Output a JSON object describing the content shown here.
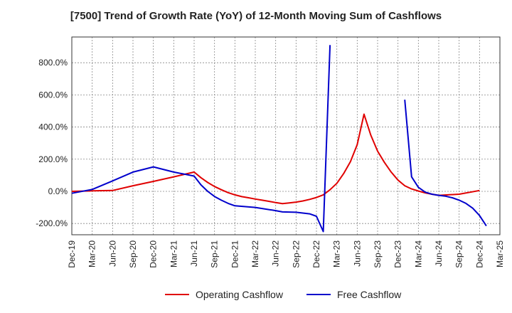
{
  "chart_data": {
    "type": "line",
    "title": "[7500]  Trend of Growth Rate (YoY) of 12-Month Moving Sum of Cashflows",
    "xlabel": "",
    "ylabel": "",
    "ylim": [
      -270,
      960
    ],
    "y_ticks": [
      -200,
      0,
      200,
      400,
      600,
      800
    ],
    "y_tick_labels": [
      "-200.0%",
      "0.0%",
      "200.0%",
      "400.0%",
      "600.0%",
      "800.0%"
    ],
    "x_tick_labels": [
      "Dec-19",
      "Mar-20",
      "Jun-20",
      "Sep-20",
      "Dec-20",
      "Mar-21",
      "Jun-21",
      "Sep-21",
      "Dec-21",
      "Mar-22",
      "Jun-22",
      "Sep-22",
      "Dec-22",
      "Mar-23",
      "Jun-23",
      "Sep-23",
      "Dec-23",
      "Mar-24",
      "Jun-24",
      "Sep-24",
      "Dec-24",
      "Mar-25"
    ],
    "grid": true,
    "legend_position": "bottom",
    "series": [
      {
        "name": "Operating Cashflow",
        "color": "#e00000",
        "points": [
          [
            "Dec-19",
            0
          ],
          [
            "Mar-20",
            3
          ],
          [
            "Jun-20",
            5
          ],
          [
            "Sep-20",
            35
          ],
          [
            "Dec-20",
            62
          ],
          [
            "Mar-21",
            90
          ],
          [
            "Jun-21",
            120
          ],
          [
            "Jul-21",
            85
          ],
          [
            "Aug-21",
            55
          ],
          [
            "Sep-21",
            30
          ],
          [
            "Oct-21",
            10
          ],
          [
            "Nov-21",
            -8
          ],
          [
            "Dec-21",
            -22
          ],
          [
            "Jan-22",
            -33
          ],
          [
            "Feb-22",
            -40
          ],
          [
            "Mar-22",
            -48
          ],
          [
            "Apr-22",
            -55
          ],
          [
            "May-22",
            -62
          ],
          [
            "Jun-22",
            -70
          ],
          [
            "Jul-22",
            -76
          ],
          [
            "Aug-22",
            -72
          ],
          [
            "Sep-22",
            -67
          ],
          [
            "Oct-22",
            -60
          ],
          [
            "Nov-22",
            -50
          ],
          [
            "Dec-22",
            -38
          ],
          [
            "Jan-23",
            -22
          ],
          [
            "Feb-23",
            10
          ],
          [
            "Mar-23",
            50
          ],
          [
            "Apr-23",
            110
          ],
          [
            "May-23",
            185
          ],
          [
            "Jun-23",
            290
          ],
          [
            "Jul-23",
            480
          ],
          [
            "Aug-23",
            350
          ],
          [
            "Sep-23",
            250
          ],
          [
            "Oct-23",
            180
          ],
          [
            "Nov-23",
            120
          ],
          [
            "Dec-23",
            70
          ],
          [
            "Jan-24",
            35
          ],
          [
            "Feb-24",
            15
          ],
          [
            "Mar-24",
            2
          ],
          [
            "Apr-24",
            -10
          ],
          [
            "May-24",
            -18
          ],
          [
            "Jun-24",
            -25
          ],
          [
            "Sep-24",
            -18
          ],
          [
            "Dec-24",
            5
          ]
        ]
      },
      {
        "name": "Free Cashflow",
        "color": "#0000cc",
        "points": [
          [
            "Dec-19",
            -12
          ],
          [
            "Mar-20",
            12
          ],
          [
            "Jun-20",
            65
          ],
          [
            "Sep-20",
            120
          ],
          [
            "Dec-20",
            152
          ],
          [
            "Mar-21",
            120
          ],
          [
            "Jun-21",
            95
          ],
          [
            "Jul-21",
            40
          ],
          [
            "Aug-21",
            0
          ],
          [
            "Sep-21",
            -32
          ],
          [
            "Oct-21",
            -55
          ],
          [
            "Nov-21",
            -75
          ],
          [
            "Dec-21",
            -90
          ],
          [
            "Mar-22",
            -100
          ],
          [
            "Jun-22",
            -120
          ],
          [
            "Jul-22",
            -128
          ],
          [
            "Sep-22",
            -130
          ],
          [
            "Oct-22",
            -135
          ],
          [
            "Nov-22",
            -140
          ],
          [
            "Dec-22",
            -155
          ],
          [
            "Jan-23",
            -250
          ],
          [
            "Feb-23",
            910
          ],
          null,
          [
            "Jan-24",
            570
          ],
          [
            "Feb-24",
            90
          ],
          [
            "Mar-24",
            25
          ],
          [
            "Apr-24",
            -5
          ],
          [
            "May-24",
            -18
          ],
          [
            "Jun-24",
            -25
          ],
          [
            "Jul-24",
            -30
          ],
          [
            "Aug-24",
            -40
          ],
          [
            "Sep-24",
            -55
          ],
          [
            "Oct-24",
            -75
          ],
          [
            "Nov-24",
            -105
          ],
          [
            "Dec-24",
            -150
          ],
          [
            "Jan-25",
            -215
          ]
        ]
      }
    ]
  }
}
